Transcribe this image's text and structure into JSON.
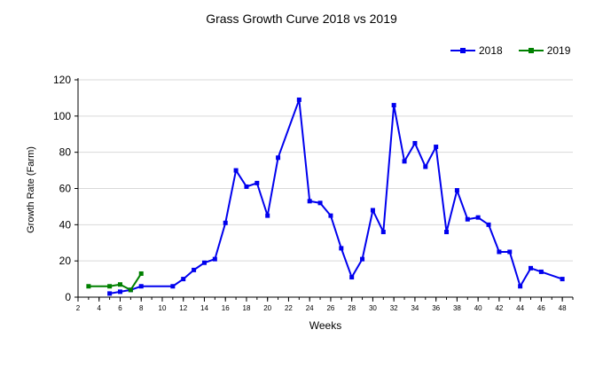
{
  "chart_data": {
    "type": "line",
    "title": "Grass Growth Curve 2018 vs 2019",
    "xlabel": "Weeks",
    "ylabel": "Growth Rate (Farm)",
    "xlim": [
      2,
      49
    ],
    "ylim": [
      0,
      120
    ],
    "x_ticks": [
      "2",
      "4",
      "6",
      "8",
      "10",
      "12",
      "14",
      "16",
      "18",
      "20",
      "22",
      "24",
      "26",
      "28",
      "30",
      "32",
      "34",
      "36",
      "38",
      "40",
      "42",
      "44",
      "46",
      "48"
    ],
    "y_ticks": [
      "0",
      "20",
      "40",
      "60",
      "80",
      "100",
      "120"
    ],
    "grid": "horizontal",
    "legend_position": "top-right",
    "series": [
      {
        "name": "2018",
        "color": "#0000ee",
        "points": [
          [
            5,
            2
          ],
          [
            6,
            3
          ],
          [
            7,
            4
          ],
          [
            8,
            6
          ],
          [
            11,
            6
          ],
          [
            12,
            10
          ],
          [
            13,
            15
          ],
          [
            14,
            19
          ],
          [
            15,
            21
          ],
          [
            16,
            41
          ],
          [
            17,
            70
          ],
          [
            18,
            61
          ],
          [
            19,
            63
          ],
          [
            20,
            45
          ],
          [
            21,
            77
          ],
          [
            23,
            109
          ],
          [
            24,
            53
          ],
          [
            25,
            52
          ],
          [
            26,
            45
          ],
          [
            27,
            27
          ],
          [
            28,
            11
          ],
          [
            29,
            21
          ],
          [
            30,
            48
          ],
          [
            31,
            36
          ],
          [
            32,
            106
          ],
          [
            33,
            75
          ],
          [
            34,
            85
          ],
          [
            35,
            72
          ],
          [
            36,
            83
          ],
          [
            37,
            36
          ],
          [
            38,
            59
          ],
          [
            39,
            43
          ],
          [
            40,
            44
          ],
          [
            41,
            40
          ],
          [
            42,
            25
          ],
          [
            43,
            25
          ],
          [
            44,
            6
          ],
          [
            45,
            16
          ],
          [
            46,
            14
          ],
          [
            48,
            10
          ]
        ]
      },
      {
        "name": "2019",
        "color": "#008000",
        "points": [
          [
            3,
            6
          ],
          [
            5,
            6
          ],
          [
            6,
            7
          ],
          [
            7,
            4
          ],
          [
            8,
            13
          ]
        ]
      }
    ]
  }
}
